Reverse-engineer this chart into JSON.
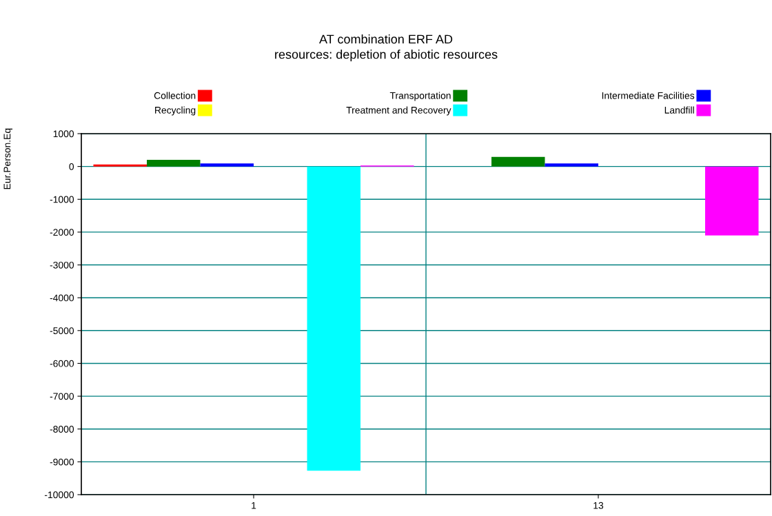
{
  "chart_data": {
    "type": "bar",
    "title": "AT combination ERF AD\nresources: depletion of abiotic resources",
    "ylabel": "Eur.Person.Eq",
    "categories": [
      "1",
      "13"
    ],
    "series": [
      {
        "name": "Collection",
        "color": "#ff0000",
        "values": [
          60,
          0
        ]
      },
      {
        "name": "Transportation",
        "color": "#008000",
        "values": [
          200,
          290
        ]
      },
      {
        "name": "Intermediate Facilities",
        "color": "#0000ff",
        "values": [
          90,
          90
        ]
      },
      {
        "name": "Recycling",
        "color": "#ffff00",
        "values": [
          0,
          0
        ]
      },
      {
        "name": "Treatment and Recovery",
        "color": "#00ffff",
        "values": [
          -9270,
          0
        ]
      },
      {
        "name": "Landfill",
        "color": "#ff00ff",
        "values": [
          30,
          -2100
        ]
      }
    ],
    "ylim": [
      -10000,
      1000
    ],
    "yticks": [
      -10000,
      -9000,
      -8000,
      -7000,
      -6000,
      -5000,
      -4000,
      -3000,
      -2000,
      -1000,
      0,
      1000
    ],
    "grid": true,
    "legend": "top"
  }
}
